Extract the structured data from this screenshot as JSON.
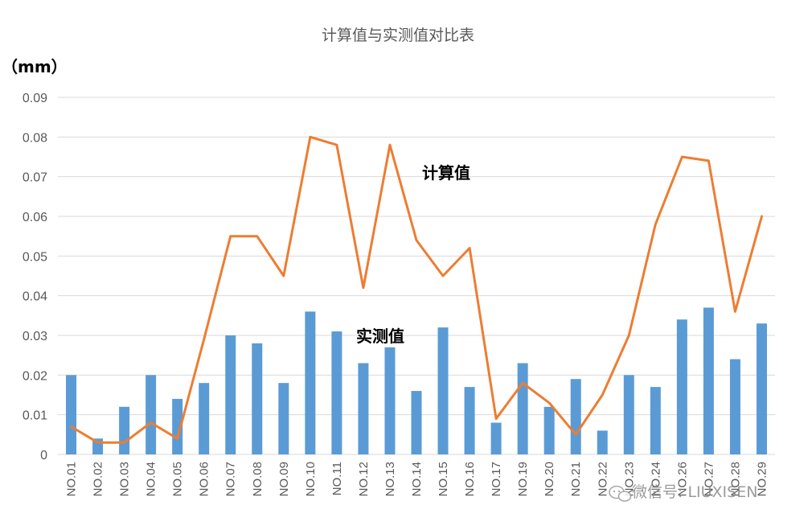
{
  "chart_data": {
    "type": "bar",
    "title": "计算值与实测值对比表",
    "ylabel": "（mm）",
    "xlabel": "",
    "ylim": [
      0,
      0.09
    ],
    "yticks": [
      "0",
      "0.01",
      "0.02",
      "0.03",
      "0.04",
      "0.05",
      "0.06",
      "0.07",
      "0.08",
      "0.09"
    ],
    "grid": true,
    "legend": "none",
    "categories": [
      "NO.01",
      "NO.02",
      "NO.03",
      "NO.04",
      "NO.05",
      "NO.06",
      "NO.07",
      "NO.08",
      "NO.09",
      "NO.10",
      "NO.11",
      "NO.12",
      "NO.13",
      "NO.14",
      "NO.15",
      "NO.16",
      "NO.17",
      "NO.19",
      "NO.20",
      "NO.21",
      "NO.22",
      "NO.23",
      "NO.24",
      "NO.26",
      "NO.27",
      "NO.28",
      "NO.29"
    ],
    "series": [
      {
        "name": "实测值",
        "type": "bar",
        "color": "#5b9bd5",
        "values": [
          0.02,
          0.004,
          0.012,
          0.02,
          0.014,
          0.018,
          0.03,
          0.028,
          0.018,
          0.036,
          0.031,
          0.023,
          0.027,
          0.016,
          0.032,
          0.017,
          0.008,
          0.023,
          0.012,
          0.019,
          0.006,
          0.02,
          0.017,
          0.034,
          0.037,
          0.024,
          0.033
        ]
      },
      {
        "name": "计算值",
        "type": "line",
        "color": "#ed7d31",
        "values": [
          0.007,
          0.003,
          0.003,
          0.008,
          0.004,
          0.029,
          0.055,
          0.055,
          0.045,
          0.08,
          0.078,
          0.042,
          0.078,
          0.054,
          0.045,
          0.052,
          0.009,
          0.018,
          0.013,
          0.005,
          0.015,
          0.03,
          0.058,
          0.075,
          0.074,
          0.036,
          0.06
        ]
      }
    ],
    "annotations": [
      {
        "text": "计算值",
        "series": "计算值"
      },
      {
        "text": "实测值",
        "series": "实测值"
      }
    ]
  },
  "watermark": {
    "icon": "wechat-icon",
    "text": "微信号: LIUXISEN"
  }
}
